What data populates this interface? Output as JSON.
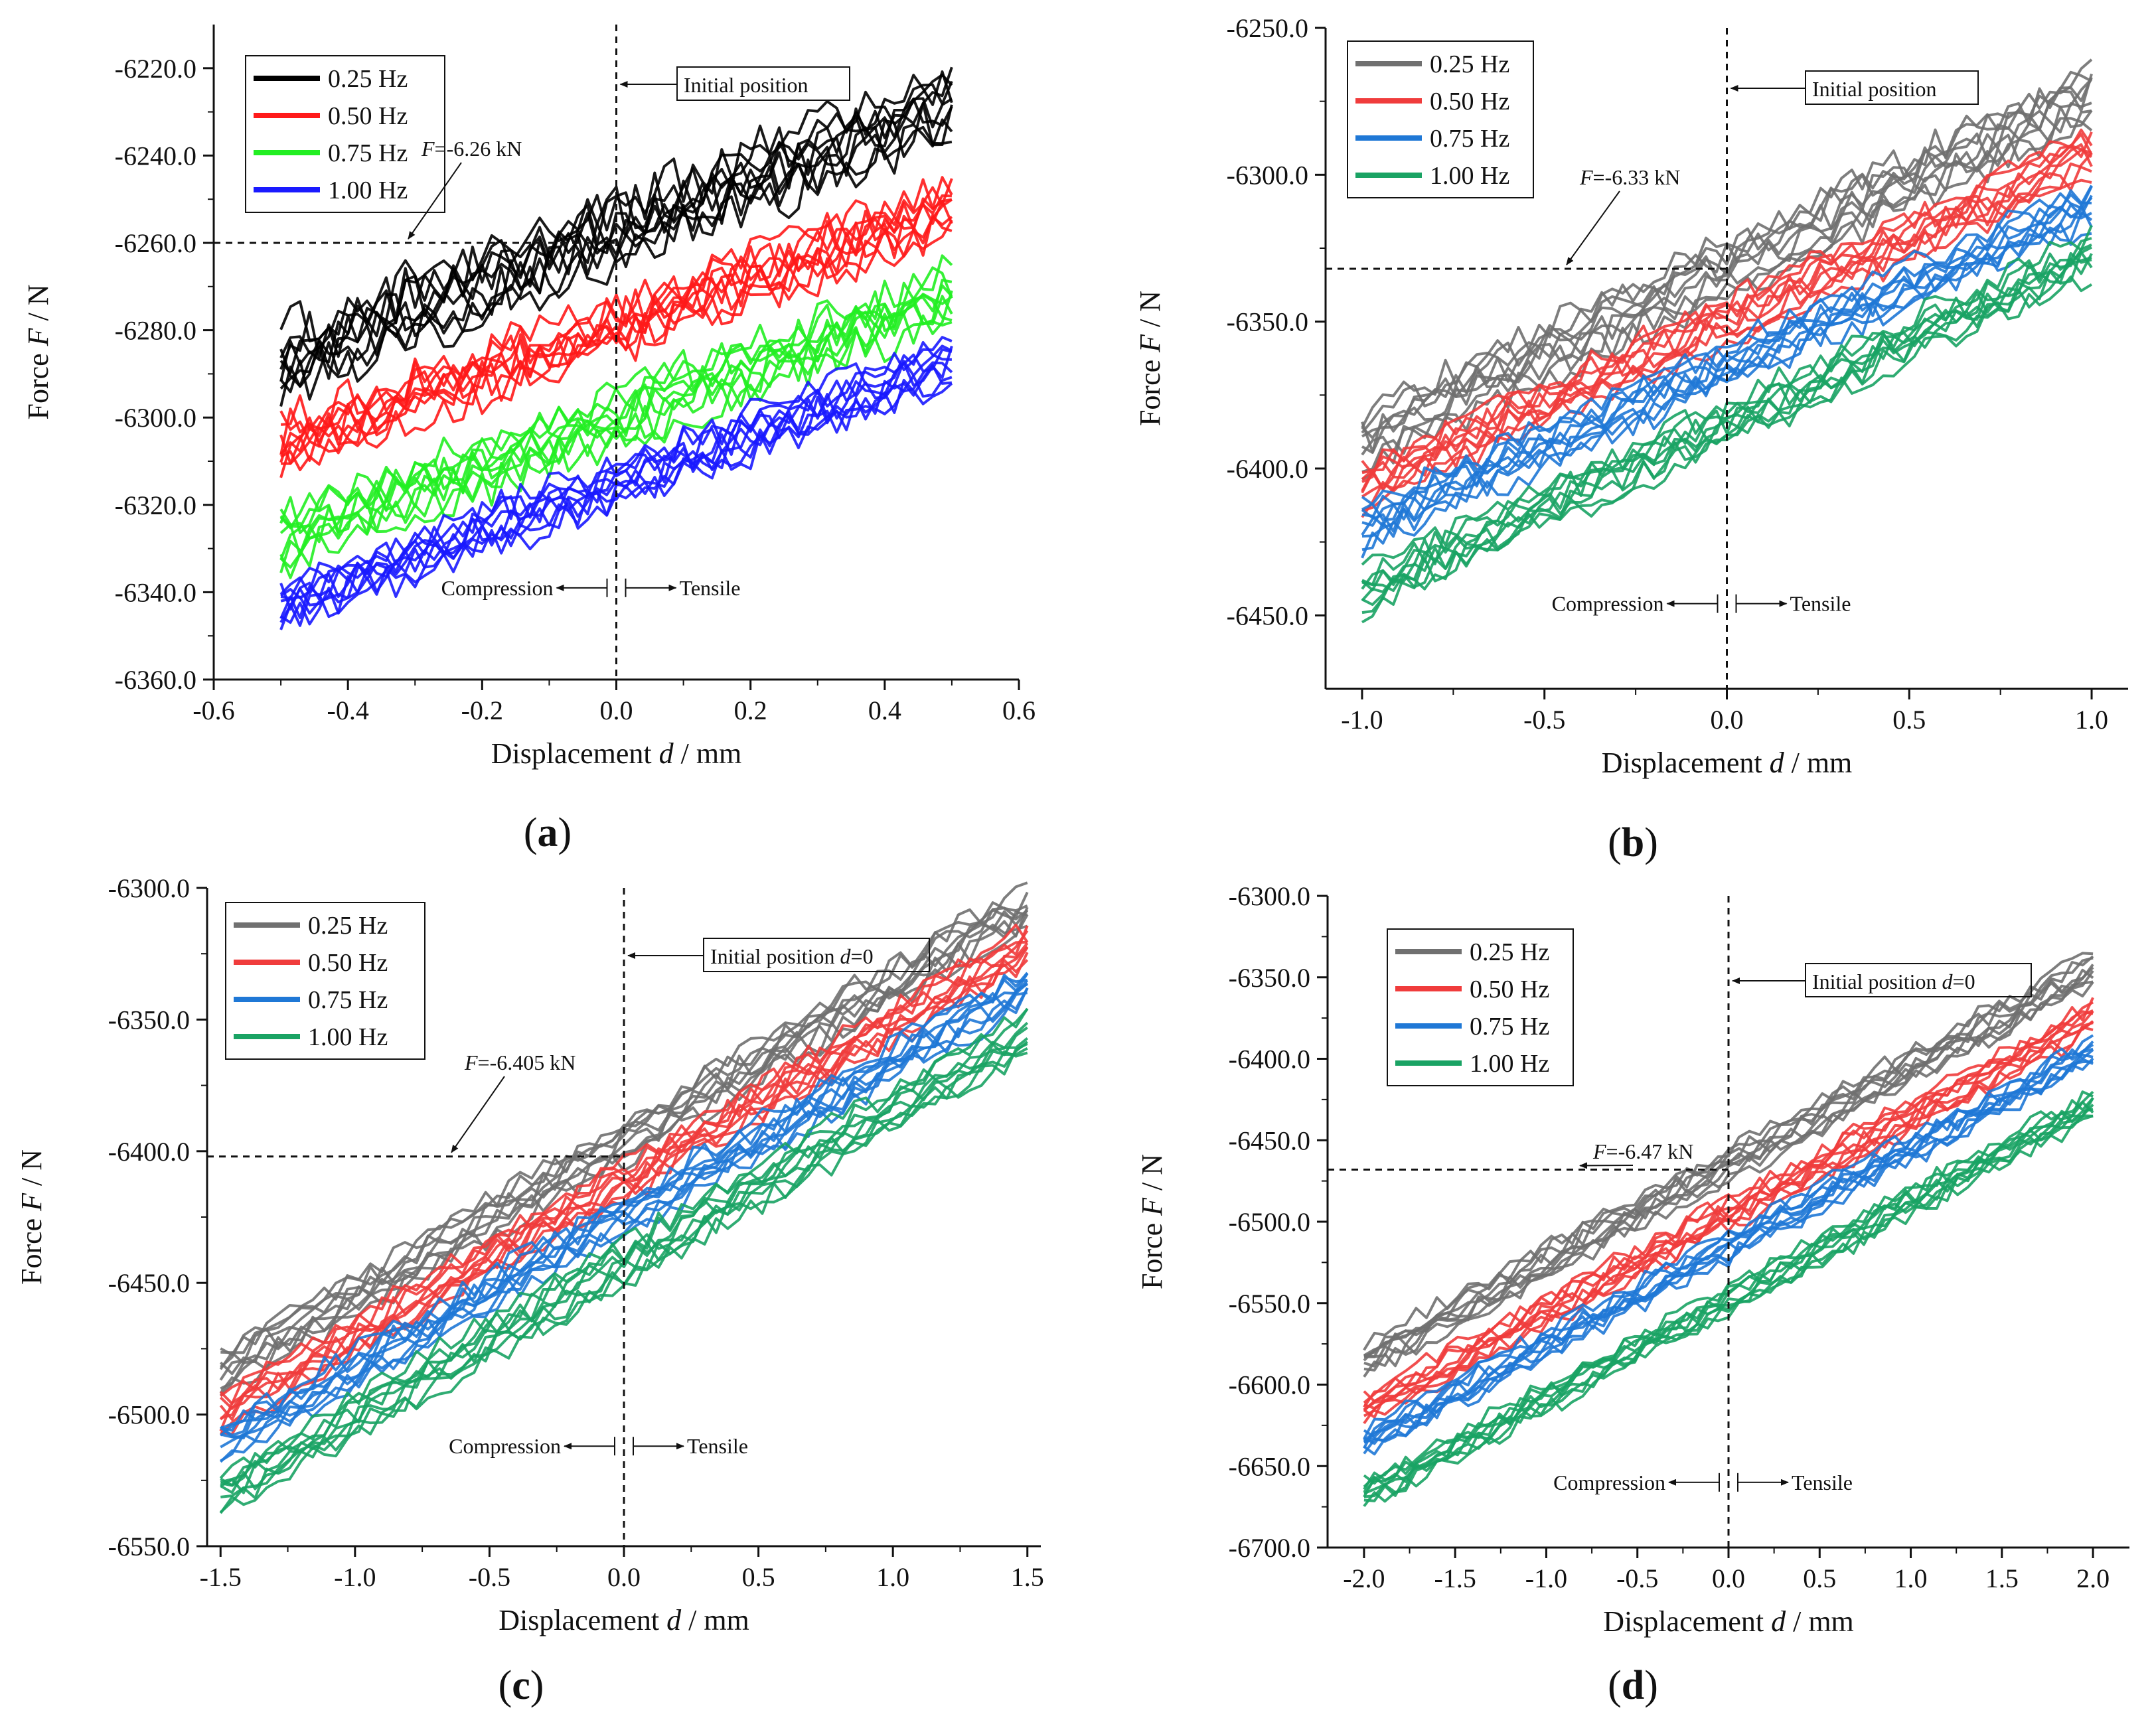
{
  "chart_data": [
    {
      "type": "line",
      "panel": "a",
      "caption": "(a)",
      "xlabel_prefix": "Displacement ",
      "xlabel_var": "d",
      "xlabel_unit": " / mm",
      "ylabel_prefix": "Force ",
      "ylabel_var": "F",
      "ylabel_unit": " / N",
      "xlim": [
        -0.6,
        0.6
      ],
      "ylim": [
        -6360,
        -6210
      ],
      "xticks": [
        -0.6,
        -0.4,
        -0.2,
        0.0,
        0.2,
        0.4,
        0.6
      ],
      "xtick_labels": [
        "-0.6",
        "-0.4",
        "-0.2",
        "0.0",
        "0.2",
        "0.4",
        "0.6"
      ],
      "yticks": [
        -6220,
        -6240,
        -6260,
        -6280,
        -6300,
        -6320,
        -6340,
        -6360
      ],
      "ytick_labels": [
        "-6220.0",
        "-6240.0",
        "-6260.0",
        "-6280.0",
        "-6300.0",
        "-6320.0",
        "-6340.0",
        "-6360.0"
      ],
      "x_range": [
        -0.5,
        0.5
      ],
      "series": [
        {
          "name": "0.25 Hz",
          "color": "#000000",
          "y_start": -6287,
          "y_end": -6228,
          "band": 12,
          "noise": 6
        },
        {
          "name": "0.50 Hz",
          "color": "#ff1a1a",
          "y_start": -6306,
          "y_end": -6252,
          "band": 9,
          "noise": 5
        },
        {
          "name": "0.75 Hz",
          "color": "#22ee22",
          "y_start": -6328,
          "y_end": -6272,
          "band": 10,
          "noise": 5
        },
        {
          "name": "1.00 Hz",
          "color": "#1a1aff",
          "y_start": -6343,
          "y_end": -6287,
          "band": 8,
          "noise": 4
        }
      ],
      "legend_position": "top-left",
      "annotations": {
        "initial_position": "Initial position",
        "force_prefix": "F",
        "force_value": "=-6.26 kN",
        "force_level": -6260,
        "compression": "Compression",
        "tensile": "Tensile",
        "arrows_y": -6339
      }
    },
    {
      "type": "line",
      "panel": "b",
      "caption": "(b)",
      "xlabel_prefix": "Displacement ",
      "xlabel_var": "d",
      "xlabel_unit": " / mm",
      "ylabel_prefix": "Force ",
      "ylabel_var": "F",
      "ylabel_unit": " / N",
      "xlim": [
        -1.1,
        1.1
      ],
      "ylim": [
        -6475,
        -6250
      ],
      "xticks": [
        -1.0,
        -0.5,
        0.0,
        0.5,
        1.0
      ],
      "xtick_labels": [
        "-1.0",
        "-0.5",
        "0.0",
        "0.5",
        "1.0"
      ],
      "yticks": [
        -6250,
        -6300,
        -6350,
        -6400,
        -6450
      ],
      "ytick_labels": [
        "-6250.0",
        "-6300.0",
        "-6350.0",
        "-6400.0",
        "-6450.0"
      ],
      "x_range": [
        -1.0,
        1.0
      ],
      "series": [
        {
          "name": "0.25 Hz",
          "color": "#707070",
          "y_start": -6390,
          "y_end": -6273,
          "band": 16,
          "noise": 6
        },
        {
          "name": "0.50 Hz",
          "color": "#f03c3c",
          "y_start": -6406,
          "y_end": -6293,
          "band": 12,
          "noise": 5
        },
        {
          "name": "0.75 Hz",
          "color": "#1f78d6",
          "y_start": -6420,
          "y_end": -6310,
          "band": 12,
          "noise": 5
        },
        {
          "name": "1.00 Hz",
          "color": "#1aa364",
          "y_start": -6442,
          "y_end": -6327,
          "band": 12,
          "noise": 5
        }
      ],
      "legend_position": "top-left",
      "annotations": {
        "initial_position": "Initial position",
        "force_prefix": "F",
        "force_value": "=-6.33 kN",
        "force_level": -6332,
        "compression": "Compression",
        "tensile": "Tensile",
        "arrows_y": -6446
      }
    },
    {
      "type": "line",
      "panel": "c",
      "caption": "(c)",
      "xlabel_prefix": "Displacement ",
      "xlabel_var": "d",
      "xlabel_unit": " / mm",
      "ylabel_prefix": "Force ",
      "ylabel_var": "F",
      "ylabel_unit": " / N",
      "xlim": [
        -1.55,
        1.55
      ],
      "ylim": [
        -6550,
        -6300
      ],
      "xticks": [
        -1.5,
        -1.0,
        -0.5,
        0.0,
        0.5,
        1.0,
        1.5
      ],
      "xtick_labels": [
        "-1.5",
        "-1.0",
        "-0.5",
        "0.0",
        "0.5",
        "1.0",
        "1.5"
      ],
      "yticks": [
        -6300,
        -6350,
        -6400,
        -6450,
        -6500,
        -6550
      ],
      "ytick_labels": [
        "-6300.0",
        "-6350.0",
        "-6400.0",
        "-6450.0",
        "-6500.0",
        "-6550.0"
      ],
      "x_range": [
        -1.5,
        1.5
      ],
      "series": [
        {
          "name": "0.25 Hz",
          "color": "#707070",
          "y_start": -6484,
          "y_end": -6307,
          "band": 14,
          "noise": 5
        },
        {
          "name": "0.50 Hz",
          "color": "#f03c3c",
          "y_start": -6500,
          "y_end": -6322,
          "band": 12,
          "noise": 5
        },
        {
          "name": "0.75 Hz",
          "color": "#1f78d6",
          "y_start": -6511,
          "y_end": -6337,
          "band": 12,
          "noise": 5
        },
        {
          "name": "1.00 Hz",
          "color": "#1aa364",
          "y_start": -6530,
          "y_end": -6355,
          "band": 14,
          "noise": 5
        }
      ],
      "legend_position": "top-left",
      "annotations": {
        "initial_position": "Initial position ",
        "initial_var": "d",
        "initial_suffix": "=0",
        "force_prefix": "F",
        "force_value": "=-6.405 kN",
        "force_level": -6402,
        "compression": "Compression",
        "tensile": "Tensile",
        "arrows_y": -6512
      }
    },
    {
      "type": "line",
      "panel": "d",
      "caption": "(d)",
      "xlabel_prefix": "Displacement ",
      "xlabel_var": "d",
      "xlabel_unit": " / mm",
      "ylabel_prefix": "Force ",
      "ylabel_var": "F",
      "ylabel_unit": " / N",
      "xlim": [
        -2.2,
        2.2
      ],
      "ylim": [
        -6700,
        -6300
      ],
      "xticks": [
        -2.0,
        -1.5,
        -1.0,
        -0.5,
        0.0,
        0.5,
        1.0,
        1.5,
        2.0
      ],
      "xtick_labels": [
        "-2.0",
        "-1.5",
        "-1.0",
        "-0.5",
        "0.0",
        "0.5",
        "1.0",
        "1.5",
        "2.0"
      ],
      "yticks": [
        -6300,
        -6350,
        -6400,
        -6450,
        -6500,
        -6550,
        -6600,
        -6650,
        -6700
      ],
      "ytick_labels": [
        "-6300.0",
        "-6350.0",
        "-6400.0",
        "-6450.0",
        "-6500.0",
        "-6550.0",
        "-6600.0",
        "-6650.0",
        "-6700.0"
      ],
      "x_range": [
        -2.0,
        2.0
      ],
      "series": [
        {
          "name": "0.25 Hz",
          "color": "#707070",
          "y_start": -6585,
          "y_end": -6345,
          "band": 18,
          "noise": 6
        },
        {
          "name": "0.50 Hz",
          "color": "#f03c3c",
          "y_start": -6615,
          "y_end": -6375,
          "band": 16,
          "noise": 6
        },
        {
          "name": "0.75 Hz",
          "color": "#1f78d6",
          "y_start": -6635,
          "y_end": -6395,
          "band": 14,
          "noise": 6
        },
        {
          "name": "1.00 Hz",
          "color": "#1aa364",
          "y_start": -6668,
          "y_end": -6428,
          "band": 14,
          "noise": 6
        }
      ],
      "legend_position": "top-left",
      "annotations": {
        "initial_position": "Initial position ",
        "initial_var": "d",
        "initial_suffix": "=0",
        "force_prefix": "F",
        "force_value": "=-6.47 kN",
        "force_level": -6468,
        "compression": "Compression",
        "tensile": "Tensile",
        "arrows_y": -6660
      }
    }
  ]
}
